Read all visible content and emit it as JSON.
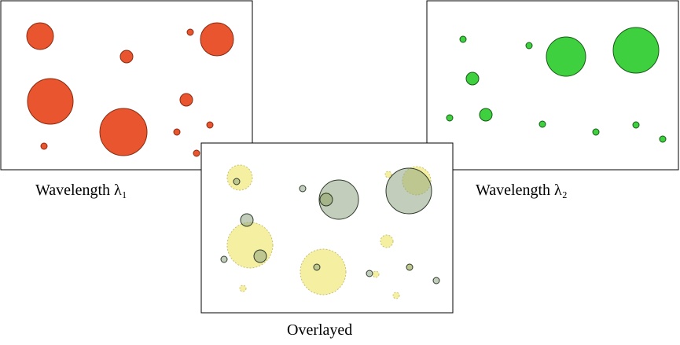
{
  "panels": [
    {
      "label": "Wavelength λ₁"
    },
    {
      "label": "Wavelength λ₂"
    },
    {
      "label": "Overlayed"
    }
  ]
}
